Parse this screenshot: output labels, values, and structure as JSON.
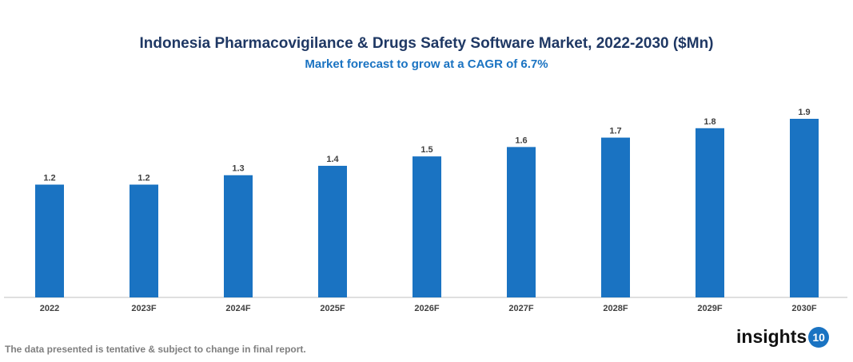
{
  "chart_data": {
    "type": "bar",
    "title": "Indonesia Pharmacovigilance & Drugs Safety Software Market, 2022-2030 ($Mn)",
    "subtitle": "Market forecast to grow at a CAGR of 6.7%",
    "categories": [
      "2022",
      "2023F",
      "2024F",
      "2025F",
      "2026F",
      "2027F",
      "2028F",
      "2029F",
      "2030F"
    ],
    "values": [
      1.2,
      1.2,
      1.3,
      1.4,
      1.5,
      1.6,
      1.7,
      1.8,
      1.9
    ],
    "xlabel": "",
    "ylabel": "",
    "ylim": [
      0,
      1.9
    ],
    "grid": false,
    "bar_color": "#1a73c2"
  },
  "footnote": "The data presented is tentative & subject to change in final report.",
  "logo": {
    "text": "insights",
    "badge": "10"
  }
}
